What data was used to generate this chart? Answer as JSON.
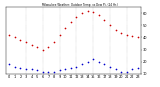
{
  "title": "",
  "hours": [
    0,
    1,
    2,
    3,
    4,
    5,
    6,
    7,
    8,
    9,
    10,
    11,
    12,
    13,
    14,
    15,
    16,
    17,
    18,
    19,
    20,
    21,
    22,
    23
  ],
  "temp": [
    42,
    40,
    38,
    36,
    34,
    32,
    30,
    32,
    36,
    42,
    48,
    53,
    57,
    60,
    62,
    61,
    58,
    54,
    50,
    46,
    44,
    42,
    41,
    40
  ],
  "dewpoint": [
    18,
    16,
    15,
    14,
    14,
    13,
    12,
    12,
    12,
    13,
    14,
    15,
    16,
    18,
    20,
    22,
    20,
    18,
    16,
    14,
    12,
    12,
    14,
    15
  ],
  "temp_color": "#cc0000",
  "dew_color": "#0000cc",
  "bg_color": "#ffffff",
  "grid_color": "#999999",
  "ylim_min": 10,
  "ylim_max": 65,
  "vline_hours": [
    3,
    6,
    9,
    12,
    15,
    18,
    21
  ],
  "ytick_values": [
    10,
    20,
    30,
    40,
    50,
    60
  ],
  "ytick_labels": [
    "10",
    "20",
    "30",
    "40",
    "50",
    "60"
  ],
  "xtick_hours": [
    0,
    1,
    2,
    3,
    4,
    5,
    6,
    7,
    8,
    9,
    10,
    11,
    12,
    13,
    14,
    15,
    16,
    17,
    18,
    19,
    20,
    21,
    22,
    23
  ],
  "marker_size": 1.5,
  "font_size": 2.5
}
